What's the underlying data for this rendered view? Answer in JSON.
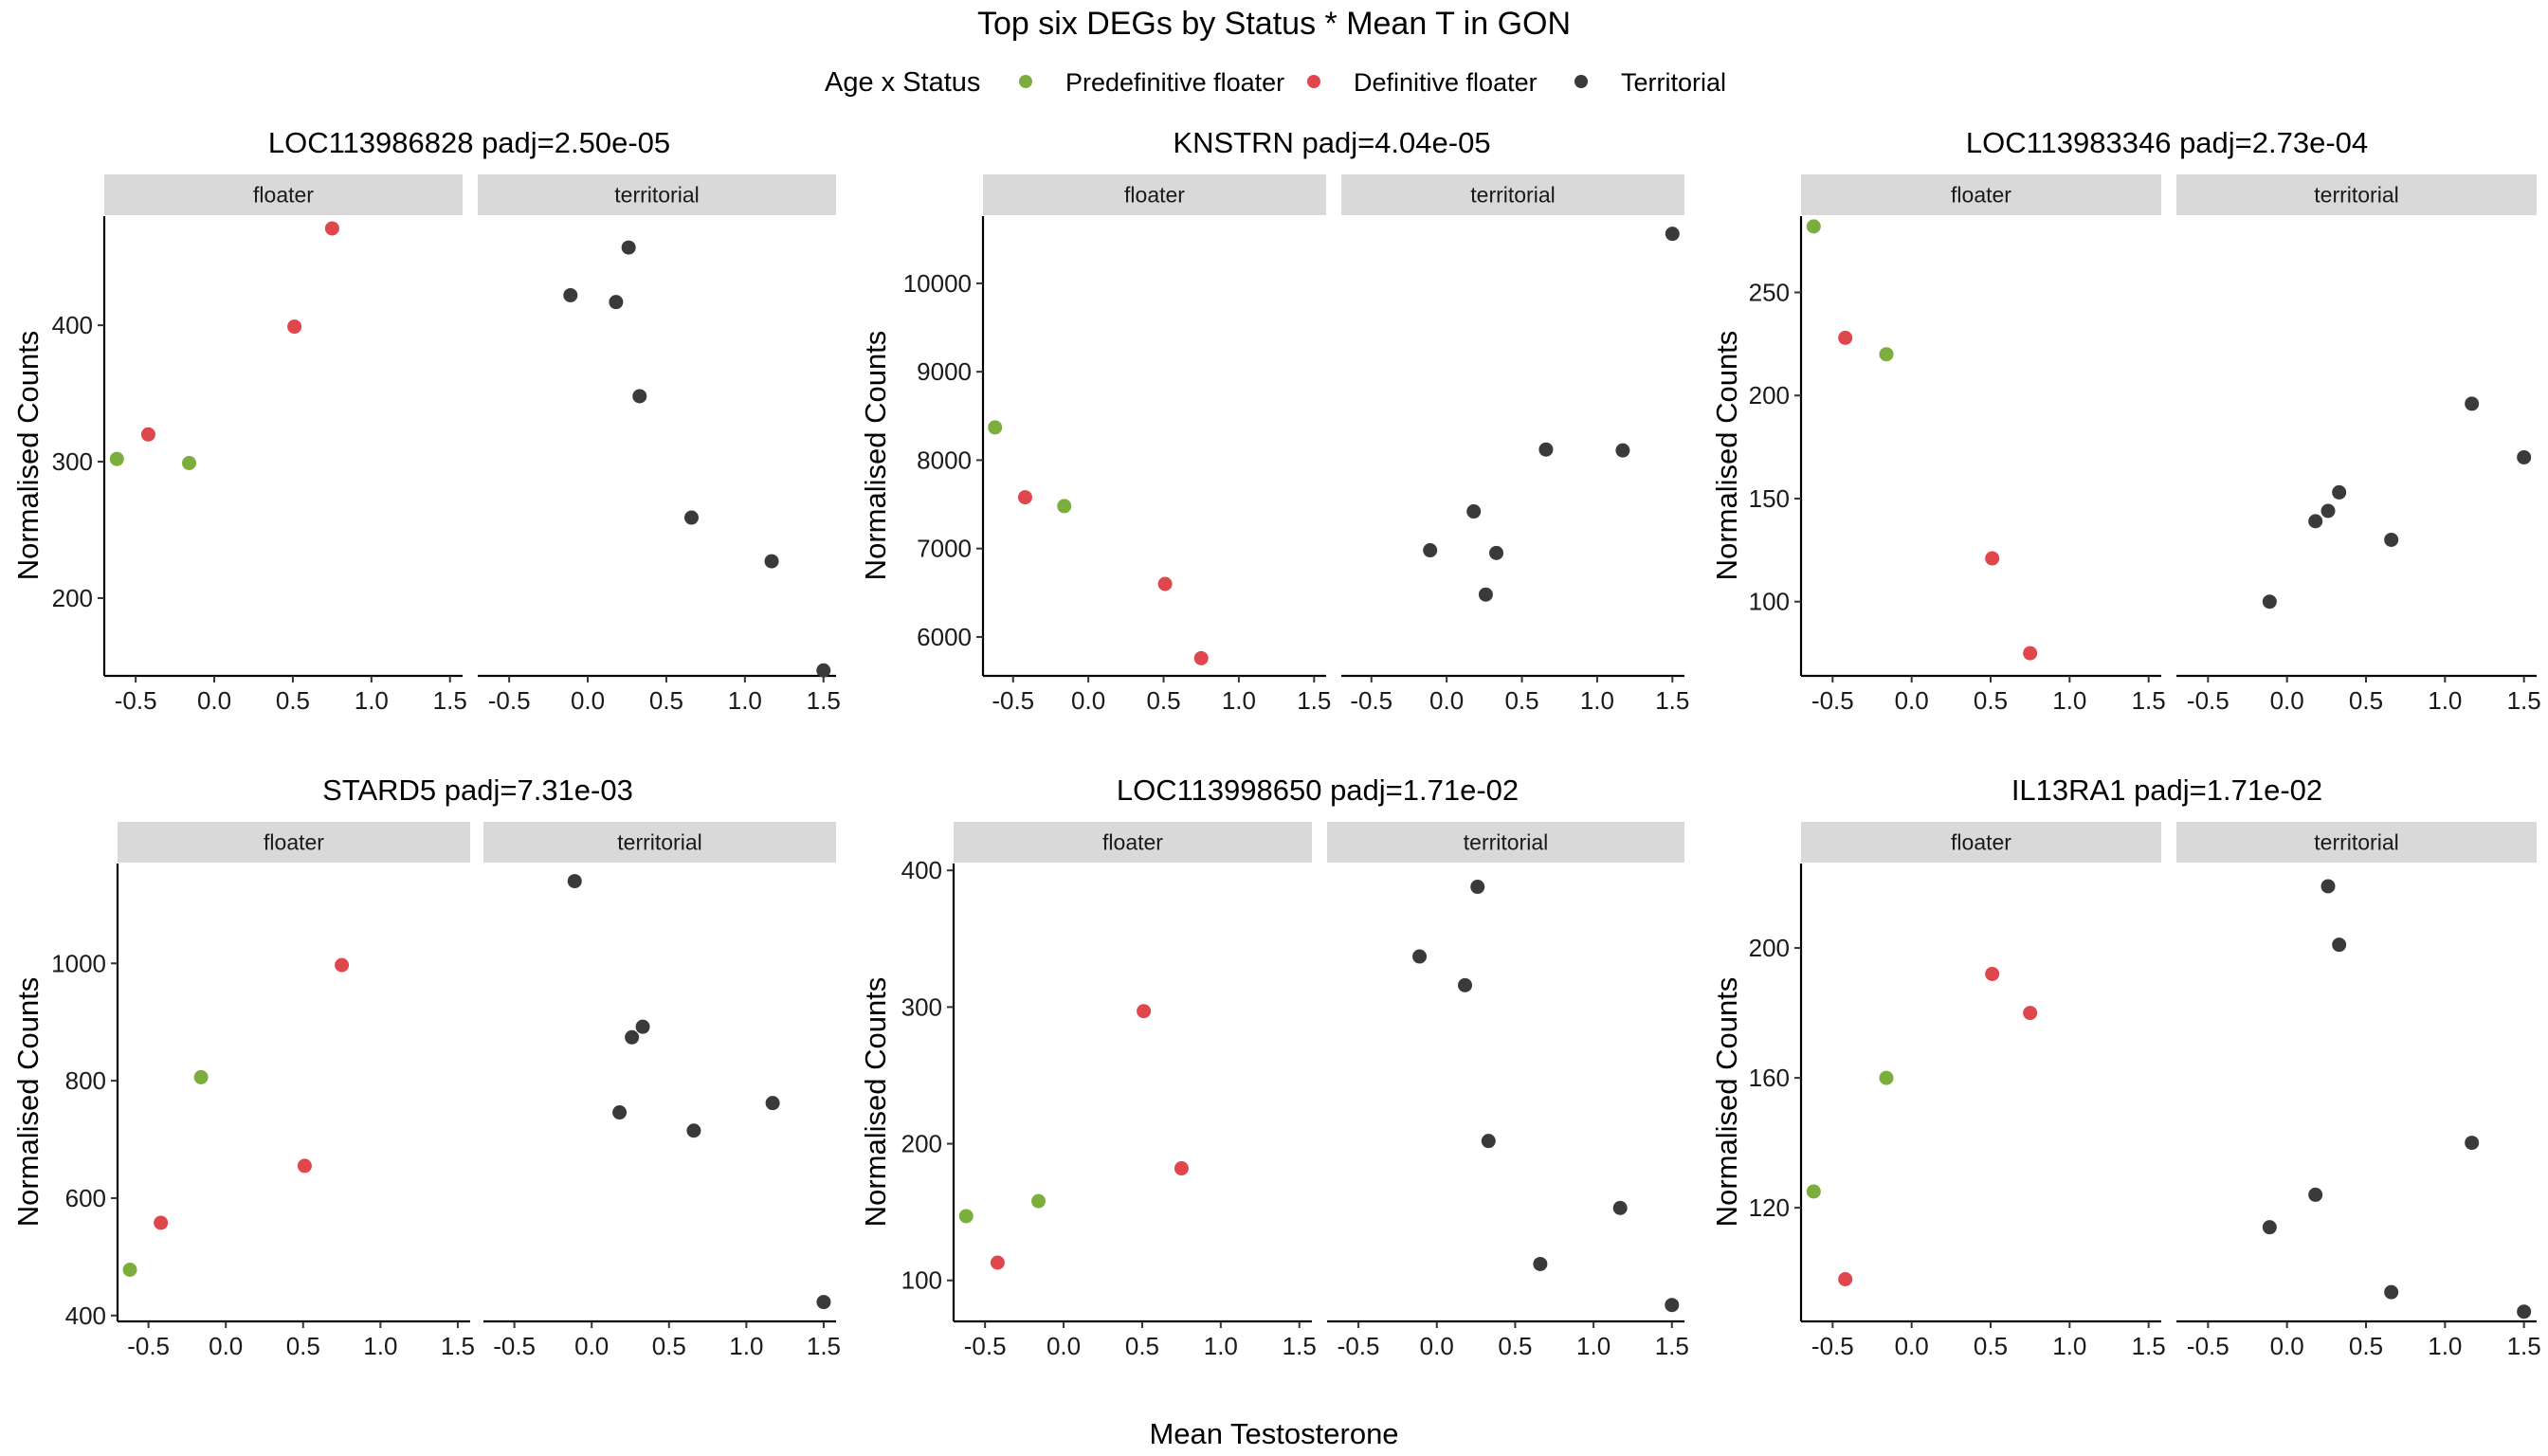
{
  "title": "Top six DEGs by Status * Mean T in GON",
  "xlabel": "Mean Testosterone",
  "legend": {
    "title": "Age x Status",
    "items": [
      {
        "key": "pre",
        "label": "Predefinitive floater",
        "color": "#7cae3e"
      },
      {
        "key": "def",
        "label": "Definitive floater",
        "color": "#e0474c"
      },
      {
        "key": "ter",
        "label": "Territorial",
        "color": "#3a3a3a"
      }
    ]
  },
  "facet_labels": [
    "floater",
    "territorial"
  ],
  "x_ticks": [
    -0.5,
    0.0,
    0.5,
    1.0,
    1.5
  ],
  "x_tick_labels": [
    "-0.5",
    "0.0",
    "0.5",
    "1.0",
    "1.5"
  ],
  "xlim": [
    -0.7,
    1.58
  ],
  "chart_data": [
    {
      "type": "scatter",
      "title": "LOC113986828 padj=2.50e-05",
      "ylabel": "Normalised Counts",
      "ylim": [
        143,
        480
      ],
      "y_ticks": [
        200,
        300,
        400
      ],
      "y_tick_labels": [
        "200",
        "300",
        "400"
      ],
      "floater": [
        {
          "x": -0.62,
          "y": 302,
          "group": "pre"
        },
        {
          "x": -0.42,
          "y": 320,
          "group": "def"
        },
        {
          "x": -0.16,
          "y": 299,
          "group": "pre"
        },
        {
          "x": 0.51,
          "y": 399,
          "group": "def"
        },
        {
          "x": 0.75,
          "y": 471,
          "group": "def"
        }
      ],
      "territorial": [
        {
          "x": -0.11,
          "y": 422,
          "group": "ter"
        },
        {
          "x": 0.18,
          "y": 417,
          "group": "ter"
        },
        {
          "x": 0.26,
          "y": 457,
          "group": "ter"
        },
        {
          "x": 0.33,
          "y": 348,
          "group": "ter"
        },
        {
          "x": 0.66,
          "y": 259,
          "group": "ter"
        },
        {
          "x": 1.17,
          "y": 227,
          "group": "ter"
        },
        {
          "x": 1.5,
          "y": 147,
          "group": "ter"
        }
      ]
    },
    {
      "type": "scatter",
      "title": "KNSTRN padj=4.04e-05",
      "ylabel": "Normalised Counts",
      "ylim": [
        5560,
        10760
      ],
      "y_ticks": [
        6000,
        7000,
        8000,
        9000,
        10000
      ],
      "y_tick_labels": [
        "6000",
        "7000",
        "8000",
        "9000",
        "10000"
      ],
      "floater": [
        {
          "x": -0.62,
          "y": 8370,
          "group": "pre"
        },
        {
          "x": -0.42,
          "y": 7580,
          "group": "def"
        },
        {
          "x": -0.16,
          "y": 7480,
          "group": "pre"
        },
        {
          "x": 0.51,
          "y": 6600,
          "group": "def"
        },
        {
          "x": 0.75,
          "y": 5760,
          "group": "def"
        }
      ],
      "territorial": [
        {
          "x": -0.11,
          "y": 6980,
          "group": "ter"
        },
        {
          "x": 0.18,
          "y": 7420,
          "group": "ter"
        },
        {
          "x": 0.26,
          "y": 6480,
          "group": "ter"
        },
        {
          "x": 0.33,
          "y": 6950,
          "group": "ter"
        },
        {
          "x": 0.66,
          "y": 8120,
          "group": "ter"
        },
        {
          "x": 1.17,
          "y": 8110,
          "group": "ter"
        },
        {
          "x": 1.5,
          "y": 10560,
          "group": "ter"
        }
      ]
    },
    {
      "type": "scatter",
      "title": "LOC113983346 padj=2.73e-04",
      "ylabel": "Normalised Counts",
      "ylim": [
        64,
        287
      ],
      "y_ticks": [
        100,
        150,
        200,
        250
      ],
      "y_tick_labels": [
        "100",
        "150",
        "200",
        "250"
      ],
      "floater": [
        {
          "x": -0.62,
          "y": 282,
          "group": "pre"
        },
        {
          "x": -0.42,
          "y": 228,
          "group": "def"
        },
        {
          "x": -0.16,
          "y": 220,
          "group": "pre"
        },
        {
          "x": 0.51,
          "y": 121,
          "group": "def"
        },
        {
          "x": 0.75,
          "y": 75,
          "group": "def"
        }
      ],
      "territorial": [
        {
          "x": -0.11,
          "y": 100,
          "group": "ter"
        },
        {
          "x": 0.18,
          "y": 139,
          "group": "ter"
        },
        {
          "x": 0.26,
          "y": 144,
          "group": "ter"
        },
        {
          "x": 0.33,
          "y": 153,
          "group": "ter"
        },
        {
          "x": 0.66,
          "y": 130,
          "group": "ter"
        },
        {
          "x": 1.17,
          "y": 196,
          "group": "ter"
        },
        {
          "x": 1.5,
          "y": 170,
          "group": "ter"
        }
      ]
    },
    {
      "type": "scatter",
      "title": "STARD5 padj=7.31e-03",
      "ylabel": "Normalised Counts",
      "ylim": [
        390,
        1170
      ],
      "y_ticks": [
        400,
        600,
        800,
        1000
      ],
      "y_tick_labels": [
        "400",
        "600",
        "800",
        "1000"
      ],
      "floater": [
        {
          "x": -0.62,
          "y": 478,
          "group": "pre"
        },
        {
          "x": -0.42,
          "y": 558,
          "group": "def"
        },
        {
          "x": -0.16,
          "y": 806,
          "group": "pre"
        },
        {
          "x": 0.51,
          "y": 655,
          "group": "def"
        },
        {
          "x": 0.75,
          "y": 997,
          "group": "def"
        }
      ],
      "territorial": [
        {
          "x": -0.11,
          "y": 1140,
          "group": "ter"
        },
        {
          "x": 0.18,
          "y": 746,
          "group": "ter"
        },
        {
          "x": 0.26,
          "y": 874,
          "group": "ter"
        },
        {
          "x": 0.33,
          "y": 892,
          "group": "ter"
        },
        {
          "x": 0.66,
          "y": 715,
          "group": "ter"
        },
        {
          "x": 1.17,
          "y": 762,
          "group": "ter"
        },
        {
          "x": 1.5,
          "y": 423,
          "group": "ter"
        }
      ]
    },
    {
      "type": "scatter",
      "title": "LOC113998650 padj=1.71e-02",
      "ylabel": "Normalised Counts",
      "ylim": [
        70,
        405
      ],
      "y_ticks": [
        100,
        200,
        300,
        400
      ],
      "y_tick_labels": [
        "100",
        "200",
        "300",
        "400"
      ],
      "floater": [
        {
          "x": -0.62,
          "y": 147,
          "group": "pre"
        },
        {
          "x": -0.42,
          "y": 113,
          "group": "def"
        },
        {
          "x": -0.16,
          "y": 158,
          "group": "pre"
        },
        {
          "x": 0.51,
          "y": 297,
          "group": "def"
        },
        {
          "x": 0.75,
          "y": 182,
          "group": "def"
        }
      ],
      "territorial": [
        {
          "x": -0.11,
          "y": 337,
          "group": "ter"
        },
        {
          "x": 0.18,
          "y": 316,
          "group": "ter"
        },
        {
          "x": 0.26,
          "y": 388,
          "group": "ter"
        },
        {
          "x": 0.33,
          "y": 202,
          "group": "ter"
        },
        {
          "x": 0.66,
          "y": 112,
          "group": "ter"
        },
        {
          "x": 1.17,
          "y": 153,
          "group": "ter"
        },
        {
          "x": 1.5,
          "y": 82,
          "group": "ter"
        }
      ]
    },
    {
      "type": "scatter",
      "title": "IL13RA1 padj=1.71e-02",
      "ylabel": "Normalised Counts",
      "ylim": [
        85,
        226
      ],
      "y_ticks": [
        120,
        160,
        200
      ],
      "y_tick_labels": [
        "120",
        "160",
        "200"
      ],
      "floater": [
        {
          "x": -0.62,
          "y": 125,
          "group": "pre"
        },
        {
          "x": -0.42,
          "y": 98,
          "group": "def"
        },
        {
          "x": -0.16,
          "y": 160,
          "group": "pre"
        },
        {
          "x": 0.51,
          "y": 192,
          "group": "def"
        },
        {
          "x": 0.75,
          "y": 180,
          "group": "def"
        }
      ],
      "territorial": [
        {
          "x": -0.11,
          "y": 114,
          "group": "ter"
        },
        {
          "x": 0.18,
          "y": 124,
          "group": "ter"
        },
        {
          "x": 0.26,
          "y": 219,
          "group": "ter"
        },
        {
          "x": 0.33,
          "y": 201,
          "group": "ter"
        },
        {
          "x": 0.66,
          "y": 94,
          "group": "ter"
        },
        {
          "x": 1.17,
          "y": 140,
          "group": "ter"
        },
        {
          "x": 1.5,
          "y": 88,
          "group": "ter"
        }
      ]
    }
  ]
}
